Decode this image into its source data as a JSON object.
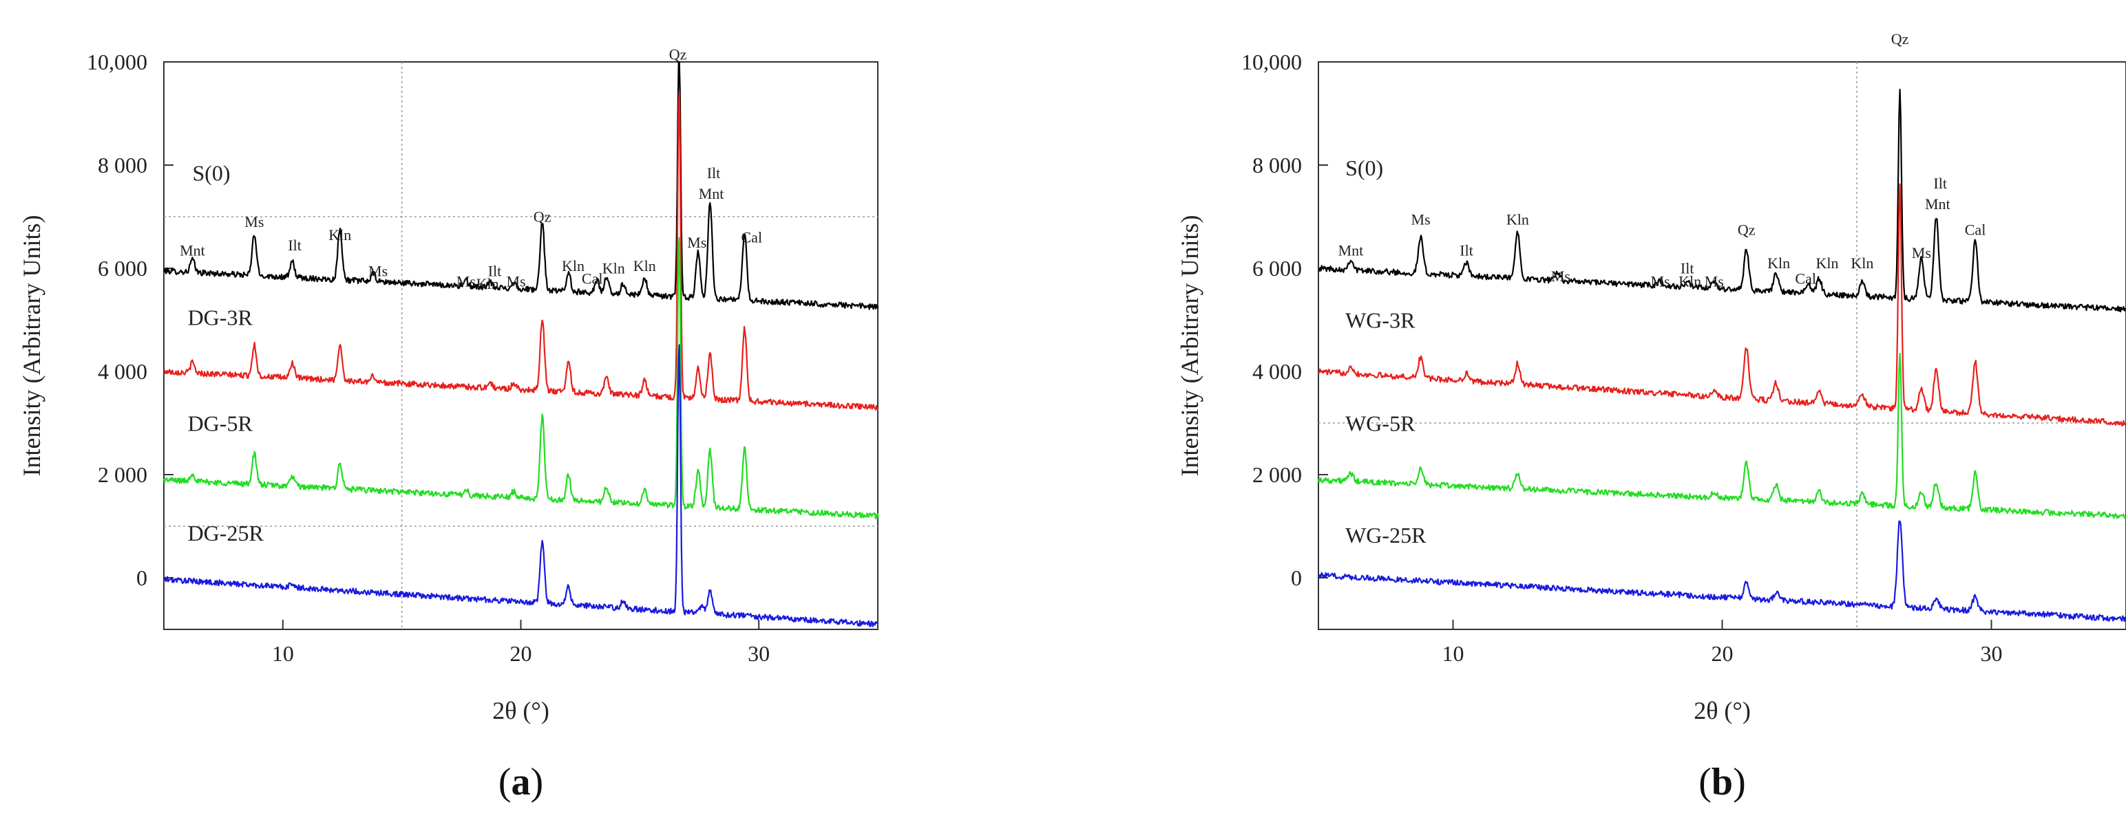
{
  "chart_data": [
    {
      "type": "line",
      "panel": "a",
      "panel_label": "a",
      "xlabel": "2θ (°)",
      "ylabel": "Intensity (Arbitrary Units)",
      "xlim": [
        5,
        35
      ],
      "ylim": [
        -1000,
        10000
      ],
      "x_ticks": [
        10,
        20,
        30
      ],
      "y_ticks": [
        0,
        2000,
        4000,
        6000,
        8000,
        10000
      ],
      "y_tick_labels": [
        "0",
        "2 000",
        "4 000",
        "6 000",
        "8 000",
        "10,000"
      ],
      "gridlines": {
        "x": [
          15
        ],
        "y": [
          1000,
          7000
        ]
      },
      "series": [
        {
          "name": "S(0)",
          "label": "S(0)",
          "color": "#000000",
          "baseline_start": 5950,
          "baseline_end": 5250,
          "label_x": 6.2,
          "label_y": 7700,
          "peaks": [
            [
              6.2,
              250
            ],
            [
              8.8,
              800
            ],
            [
              10.4,
              300
            ],
            [
              12.4,
              1000
            ],
            [
              13.8,
              150
            ],
            [
              17.7,
              100
            ],
            [
              18.7,
              100
            ],
            [
              19.7,
              120
            ],
            [
              20.9,
              1300
            ],
            [
              22.0,
              350
            ],
            [
              23.2,
              250
            ],
            [
              23.6,
              300
            ],
            [
              24.3,
              200
            ],
            [
              25.2,
              350
            ],
            [
              26.65,
              5000
            ],
            [
              27.45,
              900
            ],
            [
              27.95,
              1900
            ],
            [
              29.4,
              1300
            ]
          ]
        },
        {
          "name": "DG-3R",
          "label": "DG-3R",
          "color": "#e8201c",
          "baseline_start": 4000,
          "baseline_end": 3300,
          "label_x": 6.0,
          "label_y": 4900,
          "peaks": [
            [
              6.2,
              200
            ],
            [
              8.8,
              600
            ],
            [
              10.4,
              300
            ],
            [
              12.4,
              700
            ],
            [
              13.8,
              120
            ],
            [
              18.7,
              100
            ],
            [
              19.7,
              120
            ],
            [
              20.9,
              1400
            ],
            [
              22.0,
              600
            ],
            [
              23.6,
              300
            ],
            [
              25.2,
              300
            ],
            [
              26.65,
              6000
            ],
            [
              27.45,
              600
            ],
            [
              27.95,
              900
            ],
            [
              29.4,
              1400
            ]
          ]
        },
        {
          "name": "DG-5R",
          "label": "DG-5R",
          "color": "#22dd22",
          "baseline_start": 1900,
          "baseline_end": 1200,
          "label_x": 6.0,
          "label_y": 2850,
          "peaks": [
            [
              6.2,
              150
            ],
            [
              8.8,
              600
            ],
            [
              10.4,
              200
            ],
            [
              12.4,
              500
            ],
            [
              17.7,
              100
            ],
            [
              19.7,
              120
            ],
            [
              20.9,
              1600
            ],
            [
              22.0,
              500
            ],
            [
              23.6,
              300
            ],
            [
              25.2,
              300
            ],
            [
              26.65,
              5300
            ],
            [
              27.45,
              700
            ],
            [
              27.95,
              1100
            ],
            [
              29.4,
              1200
            ]
          ]
        },
        {
          "name": "DG-25R",
          "label": "DG-25R",
          "color": "#1a1ae0",
          "baseline_start": -30,
          "baseline_end": -900,
          "label_x": 6.0,
          "label_y": 720,
          "peaks": [
            [
              10.4,
              80
            ],
            [
              20.9,
              1200
            ],
            [
              22.0,
              350
            ],
            [
              24.3,
              150
            ],
            [
              26.65,
              5200
            ],
            [
              27.6,
              150
            ],
            [
              27.95,
              450
            ]
          ]
        }
      ],
      "annotations": [
        {
          "text": "Mnt",
          "x": 6.2,
          "y": 6250
        },
        {
          "text": "Ms",
          "x": 8.8,
          "y": 6800
        },
        {
          "text": "Ilt",
          "x": 10.5,
          "y": 6350
        },
        {
          "text": "Kln",
          "x": 12.4,
          "y": 6550
        },
        {
          "text": "Ms",
          "x": 14.0,
          "y": 5850
        },
        {
          "text": "Ms",
          "x": 17.7,
          "y": 5650
        },
        {
          "text": "Ilt",
          "x": 18.9,
          "y": 5850
        },
        {
          "text": "Kln",
          "x": 18.6,
          "y": 5600
        },
        {
          "text": "Ms",
          "x": 19.8,
          "y": 5650
        },
        {
          "text": "Qz",
          "x": 20.9,
          "y": 6900
        },
        {
          "text": "Kln",
          "x": 22.2,
          "y": 5950
        },
        {
          "text": "Cal",
          "x": 23.0,
          "y": 5700
        },
        {
          "text": "Kln",
          "x": 23.9,
          "y": 5900
        },
        {
          "text": "Kln",
          "x": 25.2,
          "y": 5950
        },
        {
          "text": "Qz",
          "x": 26.6,
          "y": 10050
        },
        {
          "text": "Ms",
          "x": 27.4,
          "y": 6400
        },
        {
          "text": "Ilt",
          "x": 28.1,
          "y": 7750
        },
        {
          "text": "Mnt",
          "x": 28.0,
          "y": 7350
        },
        {
          "text": "Cal",
          "x": 29.7,
          "y": 6500
        }
      ]
    },
    {
      "type": "line",
      "panel": "b",
      "panel_label": "b",
      "xlabel": "2θ (°)",
      "ylabel": "Intensity (Arbitrary Units)",
      "xlim": [
        5,
        35
      ],
      "ylim": [
        -1000,
        10000
      ],
      "x_ticks": [
        10,
        20,
        30
      ],
      "y_ticks": [
        0,
        2000,
        4000,
        6000,
        8000,
        10000
      ],
      "y_tick_labels": [
        "0",
        "2 000",
        "4 000",
        "6 000",
        "8 000",
        "10,000"
      ],
      "gridlines": {
        "x": [
          25
        ],
        "y": [
          3000
        ]
      },
      "series": [
        {
          "name": "S(0)",
          "label": "S(0)",
          "color": "#000000",
          "baseline_start": 6000,
          "baseline_end": 5200,
          "label_x": 6.0,
          "label_y": 7800,
          "peaks": [
            [
              6.2,
              200
            ],
            [
              8.8,
              700
            ],
            [
              10.5,
              250
            ],
            [
              12.4,
              900
            ],
            [
              13.9,
              150
            ],
            [
              17.7,
              100
            ],
            [
              18.7,
              100
            ],
            [
              19.7,
              120
            ],
            [
              20.9,
              800
            ],
            [
              22.0,
              350
            ],
            [
              23.2,
              200
            ],
            [
              23.6,
              300
            ],
            [
              25.2,
              300
            ],
            [
              26.6,
              4000
            ],
            [
              27.4,
              800
            ],
            [
              27.95,
              1600
            ],
            [
              29.4,
              1200
            ]
          ]
        },
        {
          "name": "WG-3R",
          "label": "WG-3R",
          "color": "#e8201c",
          "baseline_start": 4000,
          "baseline_end": 3000,
          "label_x": 6.0,
          "label_y": 4850,
          "peaks": [
            [
              6.2,
              150
            ],
            [
              8.8,
              400
            ],
            [
              10.5,
              150
            ],
            [
              12.4,
              400
            ],
            [
              19.7,
              100
            ],
            [
              20.9,
              1000
            ],
            [
              22.0,
              350
            ],
            [
              23.6,
              250
            ],
            [
              25.2,
              250
            ],
            [
              26.6,
              4300
            ],
            [
              27.4,
              400
            ],
            [
              27.95,
              800
            ],
            [
              29.4,
              1000
            ]
          ]
        },
        {
          "name": "WG-5R",
          "label": "WG-5R",
          "color": "#22dd22",
          "baseline_start": 1900,
          "baseline_end": 1200,
          "label_x": 6.0,
          "label_y": 2850,
          "peaks": [
            [
              6.2,
              150
            ],
            [
              8.8,
              300
            ],
            [
              12.4,
              300
            ],
            [
              19.7,
              100
            ],
            [
              20.9,
              700
            ],
            [
              22.0,
              300
            ],
            [
              23.6,
              200
            ],
            [
              25.2,
              200
            ],
            [
              26.6,
              3000
            ],
            [
              27.4,
              300
            ],
            [
              27.95,
              500
            ],
            [
              29.4,
              700
            ]
          ]
        },
        {
          "name": "WG-25R",
          "label": "WG-25R",
          "color": "#1a1ae0",
          "baseline_start": 50,
          "baseline_end": -800,
          "label_x": 6.0,
          "label_y": 680,
          "peaks": [
            [
              20.9,
              300
            ],
            [
              22.0,
              150
            ],
            [
              26.6,
              1700
            ],
            [
              27.95,
              200
            ],
            [
              29.4,
              300
            ]
          ]
        }
      ],
      "annotations": [
        {
          "text": "Mnt",
          "x": 6.2,
          "y": 6250
        },
        {
          "text": "Ms",
          "x": 8.8,
          "y": 6850
        },
        {
          "text": "Ilt",
          "x": 10.5,
          "y": 6250
        },
        {
          "text": "Kln",
          "x": 12.4,
          "y": 6850
        },
        {
          "text": "Ms",
          "x": 14.0,
          "y": 5750
        },
        {
          "text": "Ms",
          "x": 17.7,
          "y": 5650
        },
        {
          "text": "Ilt",
          "x": 18.7,
          "y": 5900
        },
        {
          "text": "Kln",
          "x": 18.8,
          "y": 5650
        },
        {
          "text": "Ms",
          "x": 19.7,
          "y": 5650
        },
        {
          "text": "Qz",
          "x": 20.9,
          "y": 6650
        },
        {
          "text": "Kln",
          "x": 22.1,
          "y": 6000
        },
        {
          "text": "Cal",
          "x": 23.1,
          "y": 5700
        },
        {
          "text": "Kln",
          "x": 23.9,
          "y": 6000
        },
        {
          "text": "Kln",
          "x": 25.2,
          "y": 6000
        },
        {
          "text": "Qz",
          "x": 26.6,
          "y": 10350
        },
        {
          "text": "Ms",
          "x": 27.4,
          "y": 6200
        },
        {
          "text": "Ilt",
          "x": 28.1,
          "y": 7550
        },
        {
          "text": "Mnt",
          "x": 28.0,
          "y": 7150
        },
        {
          "text": "Cal",
          "x": 29.4,
          "y": 6650
        }
      ]
    }
  ]
}
